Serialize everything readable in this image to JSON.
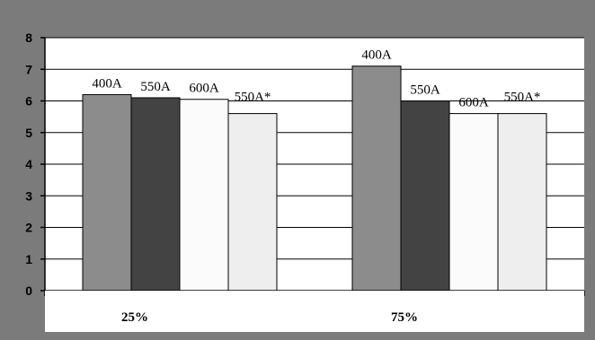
{
  "chart_data": {
    "type": "bar",
    "categories": [
      "25%",
      "75%"
    ],
    "series": [
      {
        "name": "400A",
        "values": [
          6.2,
          7.1
        ],
        "color": "#8c8c8c"
      },
      {
        "name": "550A",
        "values": [
          6.1,
          6.0
        ],
        "color": "#434343"
      },
      {
        "name": "600A",
        "values": [
          6.05,
          5.6
        ],
        "color": "#fbfbfb"
      },
      {
        "name": "550A*",
        "values": [
          5.6,
          5.6
        ],
        "color": "#eeeeee"
      }
    ],
    "ylim": [
      0,
      8
    ],
    "yticks": [
      "0",
      "1",
      "2",
      "3",
      "4",
      "5",
      "6",
      "7",
      "8"
    ],
    "grid": true,
    "plot_bg": "#ffffff",
    "frame_bg": "#7b7b7b"
  }
}
